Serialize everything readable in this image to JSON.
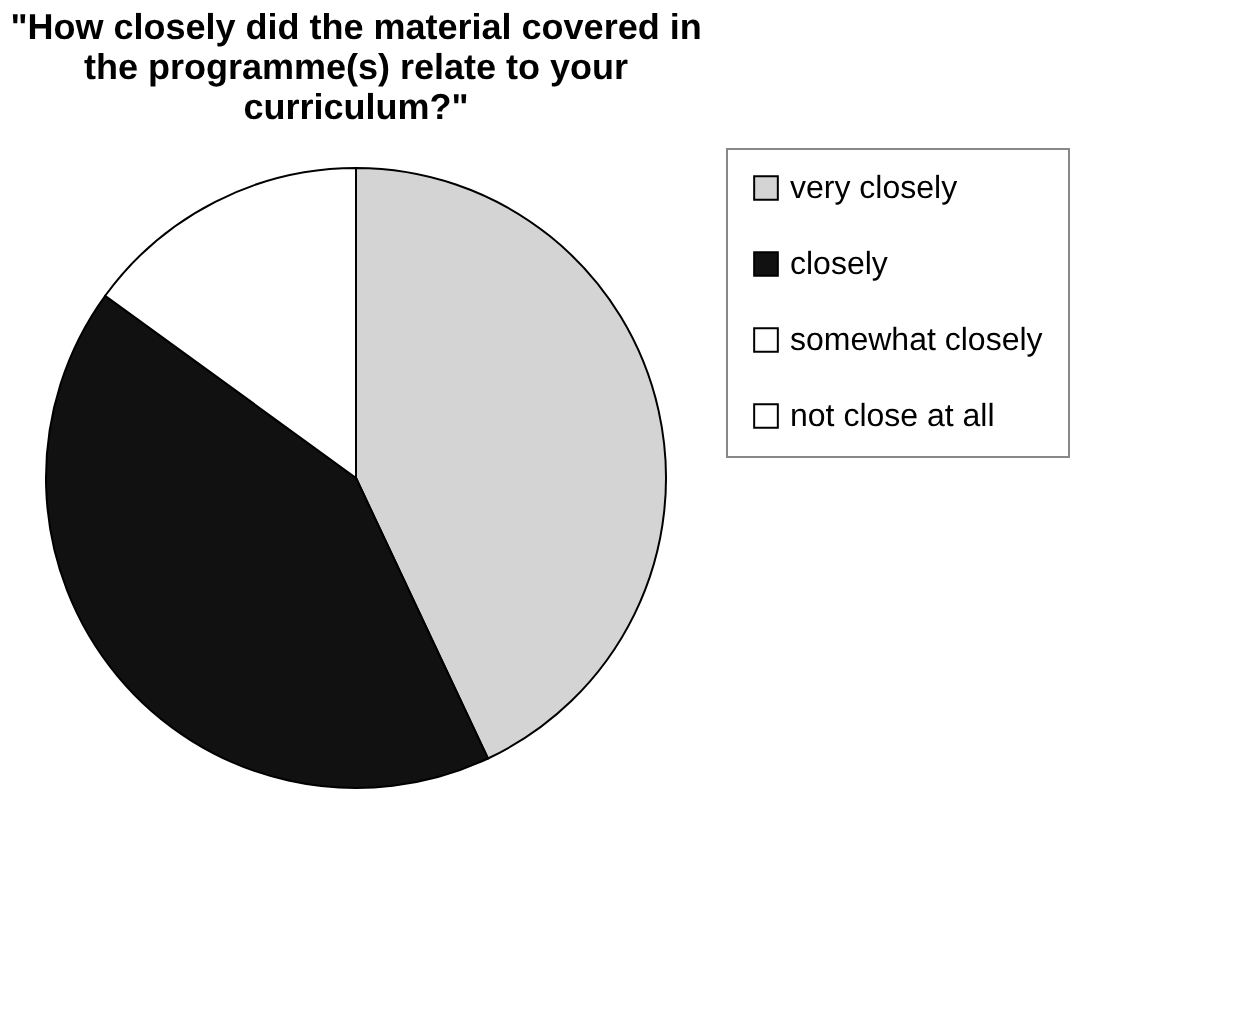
{
  "chart_data": {
    "type": "pie",
    "title": "\"How closely did the material covered in the programme(s) relate to your curriculum?\"",
    "categories": [
      "very closely",
      "closely",
      "somewhat closely",
      "not close at all"
    ],
    "values": [
      43,
      42,
      15,
      0
    ],
    "colors": [
      "#d4d4d4",
      "#111111",
      "#ffffff",
      "#ffffff"
    ],
    "legend": "right"
  }
}
